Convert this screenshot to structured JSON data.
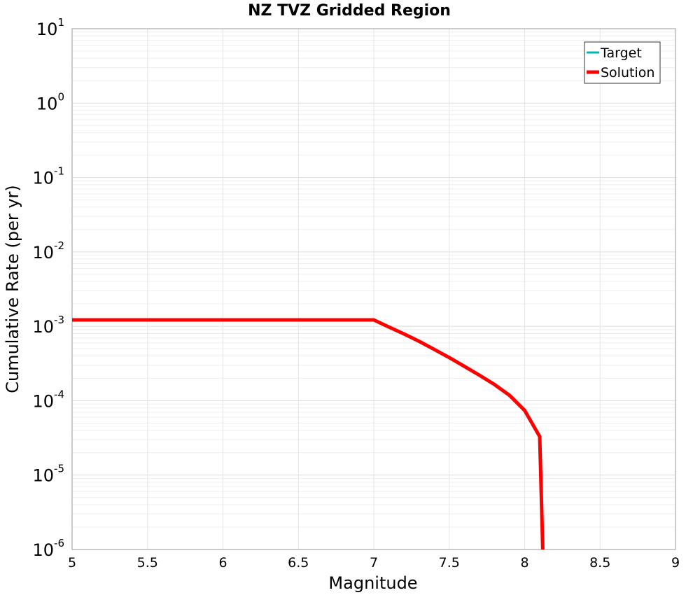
{
  "chart_data": {
    "type": "line",
    "title": "NZ TVZ Gridded Region",
    "xlabel": "Magnitude",
    "ylabel": "Cumulative Rate (per yr)",
    "xlim": [
      5,
      9
    ],
    "ylim": [
      1e-06,
      10
    ],
    "yscale": "log",
    "grid": true,
    "legend_position": "top-right",
    "x_ticks": [
      "5",
      "5.5",
      "6",
      "6.5",
      "7",
      "7.5",
      "8",
      "8.5",
      "9"
    ],
    "y_ticks": [
      {
        "base": "10",
        "exp": "1"
      },
      {
        "base": "10",
        "exp": "0"
      },
      {
        "base": "10",
        "exp": "-1"
      },
      {
        "base": "10",
        "exp": "-2"
      },
      {
        "base": "10",
        "exp": "-3"
      },
      {
        "base": "10",
        "exp": "-4"
      },
      {
        "base": "10",
        "exp": "-5"
      },
      {
        "base": "10",
        "exp": "-6"
      }
    ],
    "series": [
      {
        "name": "Target",
        "color": "#00b4b4",
        "x": [],
        "y": []
      },
      {
        "name": "Solution",
        "color": "#ff0000",
        "x": [
          5.0,
          5.5,
          6.0,
          6.5,
          7.0,
          7.1,
          7.2,
          7.3,
          7.4,
          7.5,
          7.6,
          7.7,
          7.8,
          7.9,
          8.0,
          8.1,
          8.12
        ],
        "y": [
          0.00122,
          0.00122,
          0.00122,
          0.00122,
          0.00122,
          0.00098,
          0.00079,
          0.00063,
          0.00049,
          0.00038,
          0.00029,
          0.00022,
          0.000165,
          0.000118,
          7.4e-05,
          3.3e-05,
          1e-06
        ]
      }
    ]
  }
}
